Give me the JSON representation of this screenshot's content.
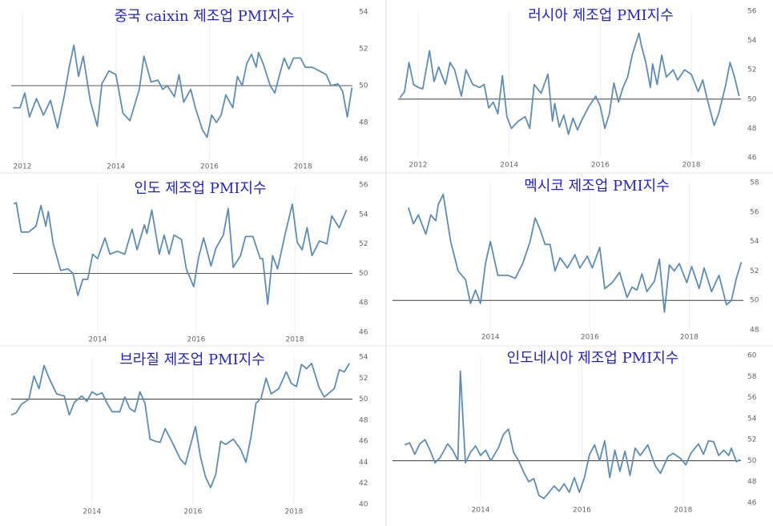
{
  "chart_data": [
    {
      "type": "line",
      "title": "중국 caixin 제조업 PMI지수",
      "color": "#5b8db8",
      "hline": 50,
      "grid": true,
      "xlim": [
        2011.76,
        2019.06
      ],
      "xticks": [
        2012,
        2014,
        2016,
        2018
      ],
      "ylim": [
        46,
        54
      ],
      "yticks": [
        46,
        48,
        50,
        52,
        54
      ],
      "x": [
        2011.8,
        2011.95,
        2012.05,
        2012.15,
        2012.3,
        2012.45,
        2012.6,
        2012.75,
        2012.9,
        2013.0,
        2013.1,
        2013.2,
        2013.3,
        2013.45,
        2013.6,
        2013.7,
        2013.85,
        2014.0,
        2014.15,
        2014.3,
        2014.5,
        2014.6,
        2014.75,
        2014.9,
        2015.0,
        2015.1,
        2015.25,
        2015.35,
        2015.45,
        2015.6,
        2015.7,
        2015.85,
        2015.95,
        2016.05,
        2016.15,
        2016.25,
        2016.35,
        2016.5,
        2016.6,
        2016.7,
        2016.8,
        2016.9,
        2017.0,
        2017.05,
        2017.15,
        2017.3,
        2017.4,
        2017.5,
        2017.6,
        2017.7,
        2017.8,
        2017.95,
        2018.05,
        2018.2,
        2018.35,
        2018.5,
        2018.6,
        2018.75,
        2018.85,
        2018.95,
        2019.05
      ],
      "values": [
        48.8,
        48.8,
        49.6,
        48.3,
        49.3,
        48.4,
        49.2,
        47.7,
        49.5,
        51.0,
        52.2,
        50.5,
        51.6,
        49.2,
        47.8,
        50.1,
        50.8,
        50.6,
        48.5,
        48.1,
        49.8,
        51.6,
        50.2,
        50.3,
        49.8,
        50.0,
        49.4,
        50.6,
        49.1,
        49.8,
        48.8,
        47.6,
        47.2,
        48.4,
        48.0,
        48.4,
        49.5,
        48.8,
        50.5,
        50.0,
        51.2,
        51.7,
        51.0,
        51.8,
        51.2,
        50.0,
        49.6,
        50.6,
        51.5,
        50.9,
        51.5,
        51.5,
        51.0,
        51.0,
        50.8,
        50.6,
        50.0,
        50.1,
        49.7,
        48.3,
        49.9
      ]
    },
    {
      "type": "line",
      "title": "러시아 제조업 PMI지수",
      "color": "#5b8db8",
      "hline": 50,
      "grid": true,
      "xlim": [
        2011.56,
        2019.09
      ],
      "xticks": [
        2012,
        2014,
        2016,
        2018
      ],
      "ylim": [
        46,
        56
      ],
      "yticks": [
        46,
        48,
        50,
        52,
        54,
        56
      ],
      "x": [
        2011.6,
        2011.7,
        2011.8,
        2011.9,
        2012.0,
        2012.1,
        2012.25,
        2012.35,
        2012.45,
        2012.6,
        2012.7,
        2012.8,
        2012.95,
        2013.05,
        2013.2,
        2013.35,
        2013.45,
        2013.55,
        2013.65,
        2013.75,
        2013.85,
        2013.95,
        2014.05,
        2014.2,
        2014.35,
        2014.45,
        2014.55,
        2014.7,
        2014.85,
        2014.95,
        2015.0,
        2015.1,
        2015.2,
        2015.3,
        2015.4,
        2015.5,
        2015.6,
        2015.75,
        2015.9,
        2016.0,
        2016.1,
        2016.2,
        2016.3,
        2016.4,
        2016.5,
        2016.6,
        2016.7,
        2016.85,
        2016.9,
        2017.0,
        2017.1,
        2017.15,
        2017.25,
        2017.35,
        2017.45,
        2017.6,
        2017.7,
        2017.85,
        2018.0,
        2018.15,
        2018.25,
        2018.35,
        2018.5,
        2018.6,
        2018.75,
        2018.85,
        2018.95,
        2019.05
      ],
      "values": [
        50.1,
        50.5,
        52.5,
        51.0,
        50.8,
        50.7,
        53.3,
        51.2,
        52.2,
        51.0,
        52.5,
        52.0,
        50.2,
        52.0,
        51.0,
        50.8,
        51.0,
        49.4,
        49.8,
        49.0,
        51.6,
        48.8,
        48.0,
        48.5,
        48.8,
        48.0,
        51.0,
        50.4,
        51.7,
        48.5,
        49.7,
        48.1,
        48.9,
        47.6,
        48.7,
        47.9,
        48.6,
        49.5,
        50.2,
        49.5,
        48.0,
        49.0,
        51.1,
        49.8,
        50.8,
        51.5,
        53.0,
        54.5,
        53.7,
        52.5,
        50.8,
        52.4,
        51.0,
        53.0,
        51.5,
        52.0,
        51.3,
        52.0,
        51.7,
        50.5,
        51.3,
        50.0,
        48.2,
        49.0,
        50.9,
        52.5,
        51.5,
        50.2
      ]
    },
    {
      "type": "line",
      "title": "인도 제조업 PMI지수",
      "color": "#5b8db8",
      "hline": 50,
      "grid": true,
      "xlim": [
        2012.28,
        2019.17
      ],
      "xticks": [
        2014,
        2016,
        2018
      ],
      "ylim": [
        46,
        56
      ],
      "yticks": [
        46,
        48,
        50,
        52,
        54,
        56
      ],
      "x": [
        2012.3,
        2012.35,
        2012.45,
        2012.6,
        2012.75,
        2012.85,
        2012.95,
        2013.0,
        2013.1,
        2013.25,
        2013.4,
        2013.5,
        2013.6,
        2013.7,
        2013.8,
        2013.9,
        2014.0,
        2014.15,
        2014.25,
        2014.4,
        2014.55,
        2014.7,
        2014.8,
        2014.95,
        2015.0,
        2015.1,
        2015.25,
        2015.35,
        2015.45,
        2015.55,
        2015.7,
        2015.8,
        2015.95,
        2016.05,
        2016.15,
        2016.3,
        2016.4,
        2016.55,
        2016.65,
        2016.75,
        2016.9,
        2017.0,
        2017.15,
        2017.3,
        2017.35,
        2017.45,
        2017.55,
        2017.65,
        2017.8,
        2017.95,
        2018.05,
        2018.15,
        2018.25,
        2018.35,
        2018.5,
        2018.65,
        2018.75,
        2018.9,
        2019.05
      ],
      "values": [
        54.7,
        54.8,
        52.8,
        52.8,
        53.2,
        54.6,
        53.2,
        54.2,
        52.0,
        50.2,
        50.3,
        50.0,
        48.5,
        49.6,
        49.6,
        51.3,
        51.0,
        52.4,
        51.3,
        51.5,
        51.3,
        53.0,
        51.6,
        53.3,
        52.7,
        54.3,
        51.3,
        52.6,
        51.3,
        52.6,
        52.3,
        50.3,
        49.1,
        51.1,
        52.4,
        50.5,
        51.7,
        52.6,
        54.4,
        50.4,
        51.2,
        52.5,
        52.5,
        51.0,
        51.0,
        47.9,
        51.2,
        50.3,
        52.6,
        54.7,
        52.1,
        51.6,
        53.1,
        51.2,
        52.2,
        52.0,
        53.9,
        53.1,
        54.3
      ]
    },
    {
      "type": "line",
      "title": "멕시코 제조업 PMI지수",
      "color": "#5b8db8",
      "hline": 50,
      "grid": true,
      "xlim": [
        2012.03,
        2019.09
      ],
      "xticks": [
        2014,
        2016,
        2018
      ],
      "ylim": [
        48,
        58
      ],
      "yticks": [
        48,
        50,
        52,
        54,
        56,
        58
      ],
      "x": [
        2012.35,
        2012.45,
        2012.55,
        2012.7,
        2012.8,
        2012.9,
        2012.95,
        2013.05,
        2013.2,
        2013.35,
        2013.5,
        2013.6,
        2013.7,
        2013.8,
        2013.9,
        2014.0,
        2014.15,
        2014.35,
        2014.5,
        2014.65,
        2014.8,
        2014.9,
        2015.0,
        2015.1,
        2015.2,
        2015.3,
        2015.4,
        2015.55,
        2015.7,
        2015.8,
        2015.95,
        2016.05,
        2016.2,
        2016.3,
        2016.45,
        2016.6,
        2016.75,
        2016.85,
        2016.95,
        2017.05,
        2017.15,
        2017.3,
        2017.4,
        2017.5,
        2017.6,
        2017.7,
        2017.8,
        2017.95,
        2018.05,
        2018.2,
        2018.3,
        2018.45,
        2018.6,
        2018.75,
        2018.85,
        2018.95,
        2019.05
      ],
      "values": [
        56.3,
        55.2,
        55.8,
        54.5,
        55.8,
        55.4,
        56.5,
        57.2,
        54.0,
        52.0,
        51.4,
        49.8,
        50.7,
        49.8,
        52.5,
        54.0,
        51.7,
        51.7,
        51.5,
        52.5,
        54.0,
        55.6,
        54.8,
        53.8,
        53.8,
        52.0,
        52.9,
        52.2,
        53.1,
        52.2,
        53.0,
        52.2,
        53.6,
        50.8,
        51.2,
        51.9,
        50.2,
        50.9,
        50.7,
        51.8,
        50.6,
        51.3,
        52.8,
        49.2,
        52.4,
        52.0,
        52.5,
        51.2,
        52.3,
        50.8,
        52.2,
        50.6,
        51.7,
        49.7,
        50.0,
        51.5,
        52.6
      ]
    },
    {
      "type": "line",
      "title": "브라질 제조업 PMI지수",
      "color": "#5b8db8",
      "hline": 50,
      "grid": true,
      "xlim": [
        2012.4,
        2019.16
      ],
      "xticks": [
        2014,
        2016,
        2018
      ],
      "ylim": [
        40,
        54
      ],
      "yticks": [
        40,
        42,
        44,
        46,
        48,
        50,
        52,
        54
      ],
      "x": [
        2012.4,
        2012.5,
        2012.6,
        2012.75,
        2012.85,
        2012.95,
        2013.05,
        2013.15,
        2013.3,
        2013.45,
        2013.55,
        2013.65,
        2013.8,
        2013.9,
        2014.0,
        2014.1,
        2014.2,
        2014.3,
        2014.4,
        2014.55,
        2014.65,
        2014.75,
        2014.85,
        2014.95,
        2015.05,
        2015.15,
        2015.25,
        2015.35,
        2015.45,
        2015.6,
        2015.75,
        2015.85,
        2015.95,
        2016.05,
        2016.15,
        2016.25,
        2016.35,
        2016.45,
        2016.55,
        2016.65,
        2016.8,
        2016.95,
        2017.05,
        2017.15,
        2017.25,
        2017.35,
        2017.45,
        2017.55,
        2017.7,
        2017.85,
        2017.95,
        2018.05,
        2018.15,
        2018.25,
        2018.35,
        2018.5,
        2018.6,
        2018.7,
        2018.8,
        2018.9,
        2019.0,
        2019.1
      ],
      "values": [
        48.5,
        48.7,
        49.5,
        50.0,
        52.2,
        51.0,
        53.2,
        52.0,
        50.5,
        50.3,
        48.5,
        49.7,
        50.3,
        49.8,
        50.7,
        50.4,
        50.6,
        49.6,
        48.8,
        48.8,
        50.2,
        49.1,
        48.8,
        50.7,
        49.6,
        46.2,
        46.0,
        45.9,
        47.2,
        45.8,
        44.3,
        43.8,
        45.6,
        47.4,
        44.5,
        42.6,
        41.6,
        42.8,
        46.0,
        45.7,
        46.2,
        45.2,
        44.0,
        46.4,
        49.6,
        50.1,
        52.0,
        50.5,
        51.0,
        52.6,
        51.5,
        51.2,
        53.3,
        52.9,
        53.4,
        51.1,
        50.2,
        50.6,
        51.0,
        52.8,
        52.6,
        53.4
      ]
    },
    {
      "type": "line",
      "title": "인도네시아 제조업 PMI지수",
      "color": "#5b8db8",
      "hline": 50,
      "grid": true,
      "xlim": [
        2012.26,
        2019.14
      ],
      "xticks": [
        2014,
        2016,
        2018
      ],
      "ylim": [
        46,
        60
      ],
      "yticks": [
        46,
        48,
        50,
        52,
        54,
        56,
        58,
        60
      ],
      "x": [
        2012.5,
        2012.6,
        2012.7,
        2012.8,
        2012.9,
        2013.0,
        2013.1,
        2013.2,
        2013.35,
        2013.45,
        2013.55,
        2013.6,
        2013.7,
        2013.8,
        2013.9,
        2014.0,
        2014.1,
        2014.2,
        2014.35,
        2014.45,
        2014.55,
        2014.65,
        2014.75,
        2014.85,
        2014.95,
        2015.05,
        2015.15,
        2015.25,
        2015.35,
        2015.45,
        2015.55,
        2015.65,
        2015.75,
        2015.85,
        2015.95,
        2016.05,
        2016.15,
        2016.25,
        2016.35,
        2016.45,
        2016.55,
        2016.65,
        2016.75,
        2016.85,
        2016.95,
        2017.05,
        2017.15,
        2017.3,
        2017.45,
        2017.55,
        2017.7,
        2017.8,
        2017.95,
        2018.05,
        2018.15,
        2018.3,
        2018.4,
        2018.5,
        2018.6,
        2018.7,
        2018.8,
        2018.9,
        2018.95,
        2019.05,
        2019.12
      ],
      "values": [
        51.5,
        51.7,
        50.6,
        51.6,
        52.0,
        51.0,
        49.8,
        50.3,
        51.6,
        51.0,
        50.0,
        58.5,
        49.8,
        50.8,
        51.4,
        50.5,
        51.0,
        50.0,
        51.2,
        52.5,
        53.0,
        50.8,
        50.0,
        48.9,
        48.0,
        48.3,
        46.7,
        46.4,
        47.0,
        47.6,
        47.1,
        47.8,
        47.0,
        48.4,
        47.0,
        48.4,
        50.6,
        51.5,
        50.0,
        51.9,
        48.4,
        51.0,
        49.0,
        50.9,
        48.6,
        51.2,
        50.5,
        51.5,
        49.5,
        48.8,
        50.4,
        50.7,
        50.2,
        49.6,
        50.7,
        51.6,
        50.6,
        51.9,
        51.8,
        50.5,
        51.0,
        50.5,
        51.2,
        49.9,
        50.1
      ]
    }
  ]
}
